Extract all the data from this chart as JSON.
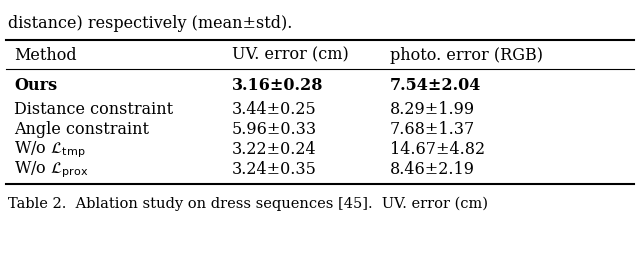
{
  "top_text": "distance) respectively (mean±std).",
  "bottom_text": "Table 2.  Ablation study on dress sequences [45].  UV. error (cm)",
  "col_headers": [
    "Method",
    "UV. error (cm)",
    "photo. error (RGB)"
  ],
  "rows": [
    {
      "uv": "3.16±0.28",
      "photo": "7.54±2.04",
      "bold": true
    },
    {
      "uv": "3.44±0.25",
      "photo": "8.29±1.99",
      "bold": false
    },
    {
      "uv": "5.96±0.33",
      "photo": "7.68±1.37",
      "bold": false
    },
    {
      "uv": "3.22±0.24",
      "photo": "14.67±4.82",
      "bold": false
    },
    {
      "uv": "3.24±0.35",
      "photo": "8.46±2.19",
      "bold": false
    }
  ],
  "bg_color": "#ffffff",
  "text_color": "#000000",
  "figsize": [
    6.4,
    2.77
  ],
  "dpi": 100
}
